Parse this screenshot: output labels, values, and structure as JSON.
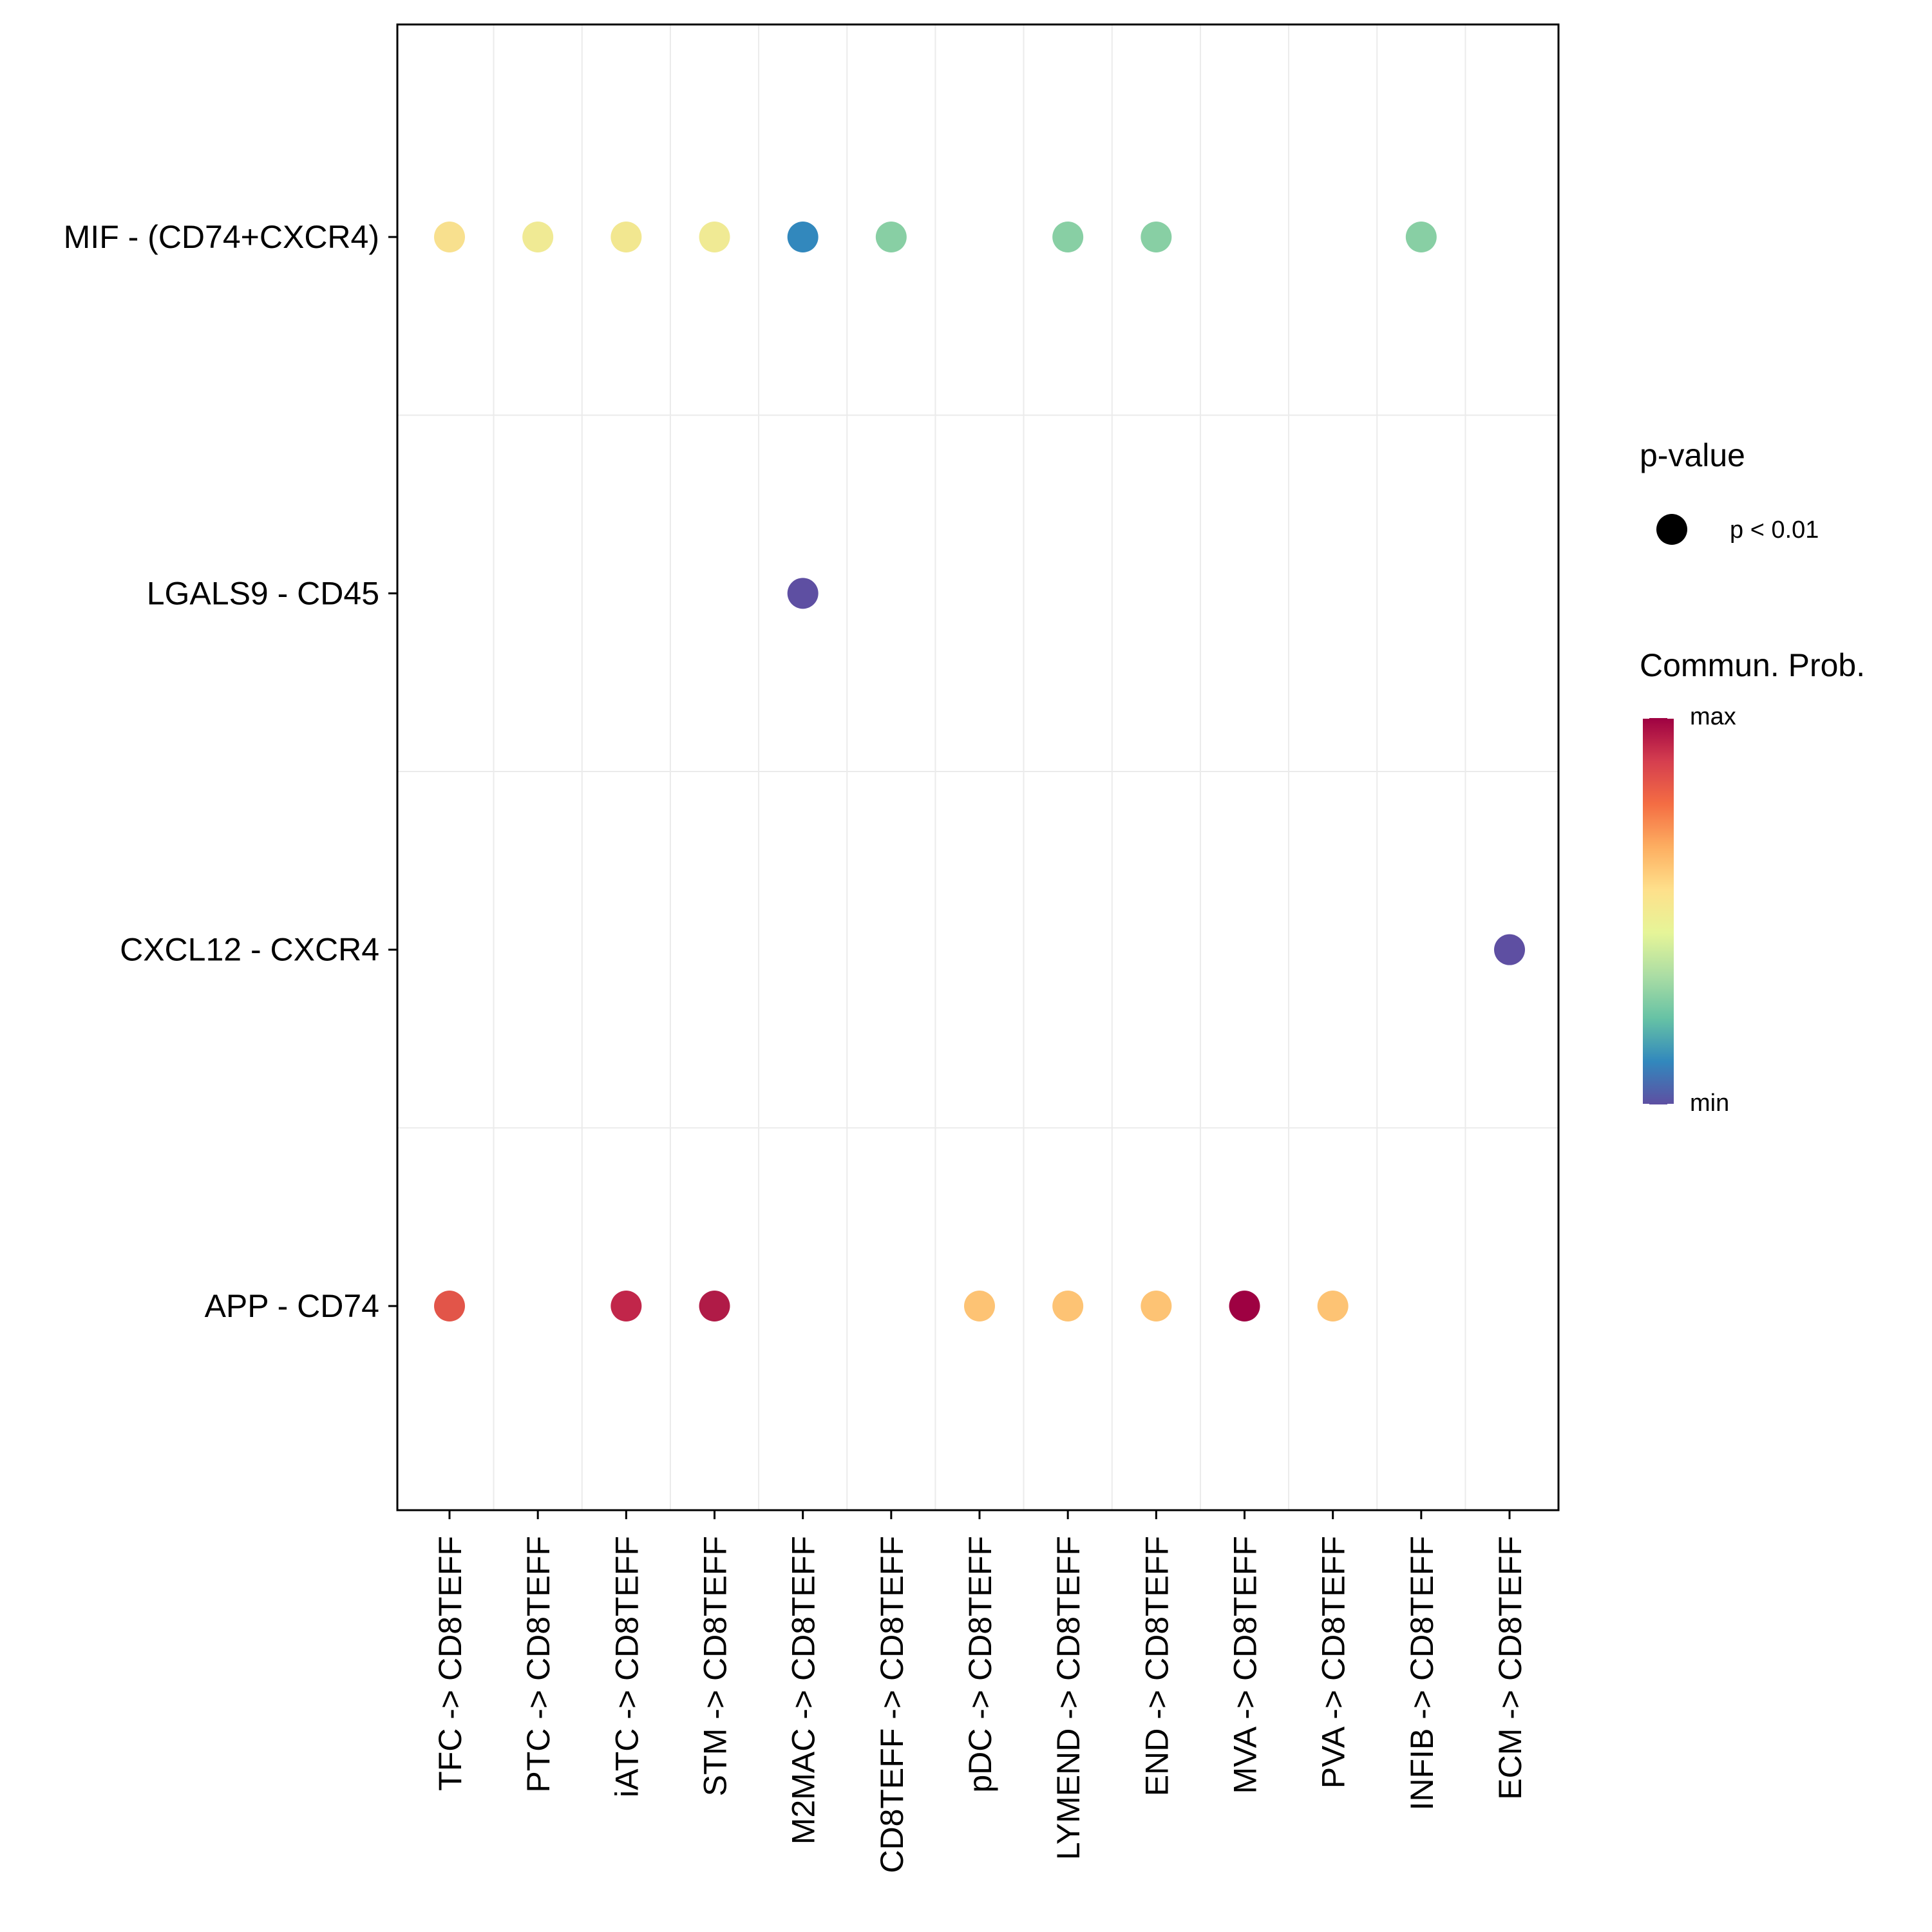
{
  "chart_data": {
    "type": "scatter",
    "subtype": "bubble-dot-plot",
    "title": "",
    "xlabel": "",
    "ylabel": "",
    "x_categories": [
      "TFC -> CD8TEFF",
      "PTC -> CD8TEFF",
      "iATC -> CD8TEFF",
      "STM -> CD8TEFF",
      "M2MAC -> CD8TEFF",
      "CD8TEFF -> CD8TEFF",
      "pDC -> CD8TEFF",
      "LYMEND -> CD8TEFF",
      "END -> CD8TEFF",
      "MVA -> CD8TEFF",
      "PVA -> CD8TEFF",
      "INFIB -> CD8TEFF",
      "ECM -> CD8TEFF"
    ],
    "y_categories": [
      "MIF - (CD74+CXCR4)",
      "LGALS9 - CD45",
      "CXCL12 - CXCR4",
      "APP - CD74"
    ],
    "grid": true,
    "points": [
      {
        "x": "TFC -> CD8TEFF",
        "y": "MIF - (CD74+CXCR4)",
        "prob": 0.6,
        "color": "#F8E08E",
        "pvalue": "p < 0.01"
      },
      {
        "x": "PTC -> CD8TEFF",
        "y": "MIF - (CD74+CXCR4)",
        "prob": 0.55,
        "color": "#F0EA94",
        "pvalue": "p < 0.01"
      },
      {
        "x": "iATC -> CD8TEFF",
        "y": "MIF - (CD74+CXCR4)",
        "prob": 0.56,
        "color": "#F2E790",
        "pvalue": "p < 0.01"
      },
      {
        "x": "STM -> CD8TEFF",
        "y": "MIF - (CD74+CXCR4)",
        "prob": 0.55,
        "color": "#F0EA94",
        "pvalue": "p < 0.01"
      },
      {
        "x": "M2MAC -> CD8TEFF",
        "y": "MIF - (CD74+CXCR4)",
        "prob": 0.1,
        "color": "#3288BD",
        "pvalue": "p < 0.01"
      },
      {
        "x": "CD8TEFF -> CD8TEFF",
        "y": "MIF - (CD74+CXCR4)",
        "prob": 0.3,
        "color": "#88CFA4",
        "pvalue": "p < 0.01"
      },
      {
        "x": "LYMEND -> CD8TEFF",
        "y": "MIF - (CD74+CXCR4)",
        "prob": 0.3,
        "color": "#88CFA4",
        "pvalue": "p < 0.01"
      },
      {
        "x": "END -> CD8TEFF",
        "y": "MIF - (CD74+CXCR4)",
        "prob": 0.3,
        "color": "#88CFA4",
        "pvalue": "p < 0.01"
      },
      {
        "x": "INFIB -> CD8TEFF",
        "y": "MIF - (CD74+CXCR4)",
        "prob": 0.3,
        "color": "#88CFA4",
        "pvalue": "p < 0.01"
      },
      {
        "x": "M2MAC -> CD8TEFF",
        "y": "LGALS9 - CD45",
        "prob": 0.0,
        "color": "#5E4FA2",
        "pvalue": "p < 0.01"
      },
      {
        "x": "ECM -> CD8TEFF",
        "y": "CXCL12 - CXCR4",
        "prob": 0.0,
        "color": "#5E4FA2",
        "pvalue": "p < 0.01"
      },
      {
        "x": "TFC -> CD8TEFF",
        "y": "APP - CD74",
        "prob": 0.83,
        "color": "#E25549",
        "pvalue": "p < 0.01"
      },
      {
        "x": "iATC -> CD8TEFF",
        "y": "APP - CD74",
        "prob": 0.93,
        "color": "#C1264A",
        "pvalue": "p < 0.01"
      },
      {
        "x": "STM -> CD8TEFF",
        "y": "APP - CD74",
        "prob": 0.96,
        "color": "#B01B47",
        "pvalue": "p < 0.01"
      },
      {
        "x": "pDC -> CD8TEFF",
        "y": "APP - CD74",
        "prob": 0.68,
        "color": "#FDC374",
        "pvalue": "p < 0.01"
      },
      {
        "x": "LYMEND -> CD8TEFF",
        "y": "APP - CD74",
        "prob": 0.68,
        "color": "#FDC374",
        "pvalue": "p < 0.01"
      },
      {
        "x": "END -> CD8TEFF",
        "y": "APP - CD74",
        "prob": 0.68,
        "color": "#FDC374",
        "pvalue": "p < 0.01"
      },
      {
        "x": "MVA -> CD8TEFF",
        "y": "APP - CD74",
        "prob": 1.0,
        "color": "#9E0142",
        "pvalue": "p < 0.01"
      },
      {
        "x": "PVA -> CD8TEFF",
        "y": "APP - CD74",
        "prob": 0.68,
        "color": "#FDC374",
        "pvalue": "p < 0.01"
      }
    ],
    "legends": {
      "size": {
        "title": "p-value",
        "entries": [
          {
            "label": "p < 0.01",
            "color": "#000000"
          }
        ]
      },
      "color": {
        "title": "Commun. Prob.",
        "type": "gradient",
        "palette": "Spectral",
        "stops": [
          "#5E4FA2",
          "#3288BD",
          "#66C2A5",
          "#ABDDA4",
          "#E6F598",
          "#FEE08B",
          "#FDAE61",
          "#F46D43",
          "#D53E4F",
          "#9E0142"
        ],
        "max_label": "max",
        "min_label": "min",
        "range": [
          0,
          1
        ]
      },
      "placement": "right"
    }
  }
}
